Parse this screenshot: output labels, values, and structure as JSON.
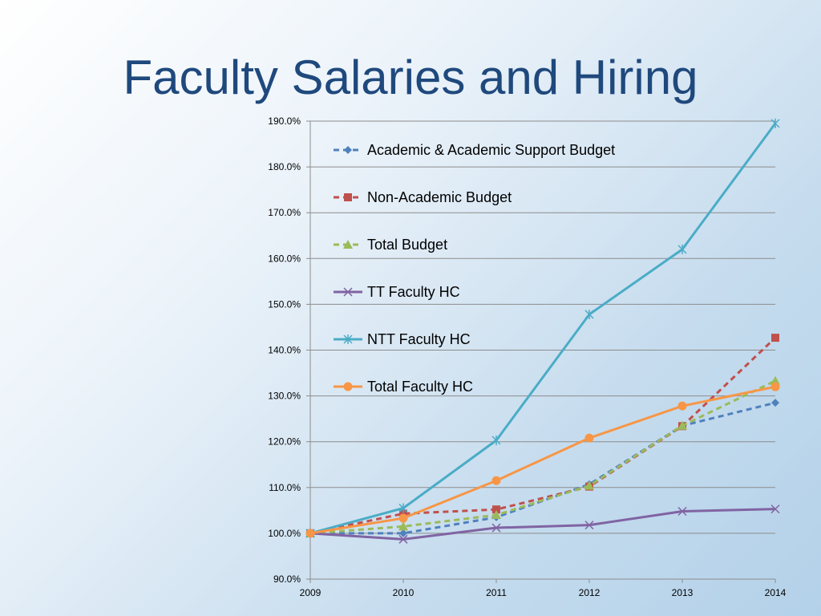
{
  "slide": {
    "title": "Faculty Salaries and Hiring"
  },
  "chart_data": {
    "type": "line",
    "x": [
      "2009",
      "2010",
      "2011",
      "2012",
      "2013",
      "2014"
    ],
    "ylim": [
      90,
      190
    ],
    "yticks": [
      "90.0%",
      "100.0%",
      "110.0%",
      "120.0%",
      "130.0%",
      "140.0%",
      "150.0%",
      "160.0%",
      "170.0%",
      "180.0%",
      "190.0%"
    ],
    "grid": "horizontal",
    "legend": "top-left, inside",
    "series": [
      {
        "name": "Academic & Academic Support Budget",
        "color": "#4f81bd",
        "dash": true,
        "marker": "diamond",
        "values": [
          100.0,
          100.0,
          103.5,
          110.7,
          123.5,
          128.5
        ]
      },
      {
        "name": "Non-Academic Budget",
        "color": "#c0504d",
        "dash": true,
        "marker": "square",
        "values": [
          100.0,
          104.3,
          105.2,
          110.2,
          123.4,
          142.7
        ]
      },
      {
        "name": "Total Budget",
        "color": "#9bbb59",
        "dash": true,
        "marker": "triangle",
        "values": [
          100.0,
          101.5,
          104.0,
          110.4,
          123.5,
          133.3
        ]
      },
      {
        "name": "TT Faculty HC",
        "color": "#8064a2",
        "dash": false,
        "marker": "x",
        "values": [
          100.0,
          98.7,
          101.2,
          101.8,
          104.8,
          105.3
        ]
      },
      {
        "name": "NTT Faculty HC",
        "color": "#4bacc6",
        "dash": false,
        "marker": "star",
        "values": [
          100.0,
          105.5,
          120.3,
          147.8,
          162.0,
          189.5
        ]
      },
      {
        "name": "Total Faculty HC",
        "color": "#f79646",
        "dash": false,
        "marker": "circle",
        "values": [
          100.0,
          103.3,
          111.5,
          120.8,
          127.8,
          132.0
        ]
      }
    ]
  }
}
